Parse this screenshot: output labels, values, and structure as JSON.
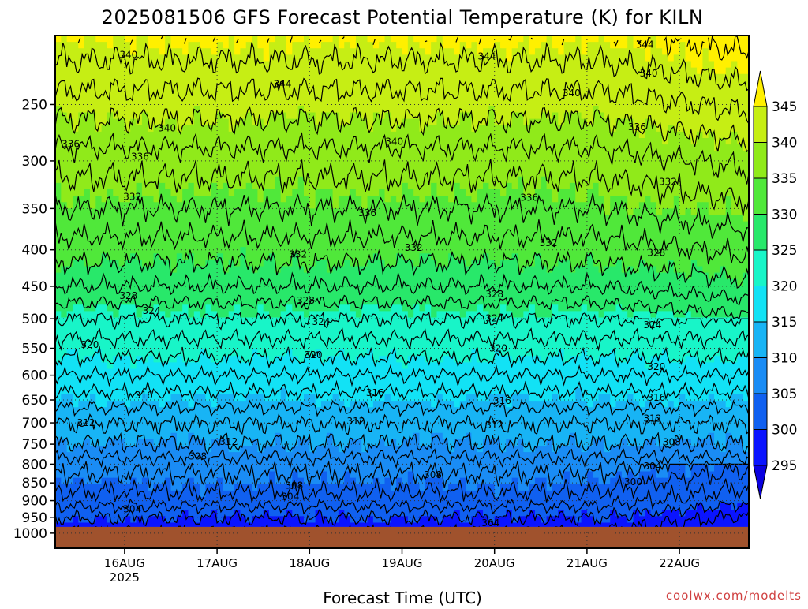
{
  "chart_data": {
    "type": "contour",
    "title": "2025081506 GFS Forecast Potential Temperature (K) for KILN",
    "xlabel": "Forecast Time (UTC)",
    "ylabel": "",
    "credit": "coolwx.com/modelts",
    "x_ticks": [
      {
        "label": "16AUG",
        "sublabel": "2025",
        "hour": 18
      },
      {
        "label": "17AUG",
        "sublabel": "",
        "hour": 42
      },
      {
        "label": "18AUG",
        "sublabel": "",
        "hour": 66
      },
      {
        "label": "19AUG",
        "sublabel": "",
        "hour": 90
      },
      {
        "label": "20AUG",
        "sublabel": "",
        "hour": 114
      },
      {
        "label": "21AUG",
        "sublabel": "",
        "hour": 138
      },
      {
        "label": "22AUG",
        "sublabel": "",
        "hour": 162
      }
    ],
    "x_range_hours": [
      0,
      180
    ],
    "y_axis": "pressure (hPa), inverted",
    "y_range": [
      200,
      1050
    ],
    "y_ticks": [
      250,
      300,
      350,
      400,
      450,
      500,
      550,
      600,
      650,
      700,
      750,
      800,
      850,
      900,
      950,
      1000
    ],
    "colorbar": {
      "levels": [
        295,
        300,
        305,
        310,
        315,
        320,
        325,
        330,
        335,
        340,
        345
      ],
      "labels": [
        "295",
        "300",
        "305",
        "310",
        "315",
        "320",
        "325",
        "330",
        "335",
        "340",
        "345"
      ],
      "colors": [
        "#0a00e0",
        "#0a14ff",
        "#1060f0",
        "#1a8cf5",
        "#18b4f5",
        "#12e2f5",
        "#18f5c8",
        "#28e86a",
        "#50e83a",
        "#90ea1a",
        "#c6ee14",
        "#fff000"
      ]
    },
    "ground_color": "#a0522d",
    "grid": true,
    "profile": [
      {
        "p": 250,
        "theta": 341
      },
      {
        "p": 300,
        "theta": 337
      },
      {
        "p": 350,
        "theta": 334
      },
      {
        "p": 400,
        "theta": 331
      },
      {
        "p": 450,
        "theta": 328
      },
      {
        "p": 500,
        "theta": 324
      },
      {
        "p": 550,
        "theta": 321
      },
      {
        "p": 600,
        "theta": 318
      },
      {
        "p": 650,
        "theta": 315
      },
      {
        "p": 700,
        "theta": 312
      },
      {
        "p": 750,
        "theta": 310
      },
      {
        "p": 800,
        "theta": 307
      },
      {
        "p": 850,
        "theta": 305
      },
      {
        "p": 900,
        "theta": 303
      },
      {
        "p": 950,
        "theta": 300
      }
    ],
    "contour_labels": [
      {
        "text": "340",
        "hour": 19,
        "p": 213
      },
      {
        "text": "344",
        "hour": 59,
        "p": 234
      },
      {
        "text": "340",
        "hour": 29,
        "p": 270
      },
      {
        "text": "344",
        "hour": 112,
        "p": 214
      },
      {
        "text": "344",
        "hour": 153,
        "p": 206
      },
      {
        "text": "340",
        "hour": 154,
        "p": 226
      },
      {
        "text": "340",
        "hour": 134,
        "p": 241
      },
      {
        "text": "340",
        "hour": 88,
        "p": 282
      },
      {
        "text": "336",
        "hour": 4,
        "p": 284
      },
      {
        "text": "336",
        "hour": 22,
        "p": 296
      },
      {
        "text": "336",
        "hour": 151,
        "p": 269
      },
      {
        "text": "332",
        "hour": 20,
        "p": 337
      },
      {
        "text": "332",
        "hour": 159,
        "p": 321
      },
      {
        "text": "336",
        "hour": 81,
        "p": 355
      },
      {
        "text": "336",
        "hour": 123,
        "p": 338
      },
      {
        "text": "332",
        "hour": 128,
        "p": 391
      },
      {
        "text": "332",
        "hour": 63,
        "p": 406
      },
      {
        "text": "332",
        "hour": 93,
        "p": 397
      },
      {
        "text": "328",
        "hour": 156,
        "p": 404
      },
      {
        "text": "328",
        "hour": 19,
        "p": 464
      },
      {
        "text": "328",
        "hour": 65,
        "p": 471
      },
      {
        "text": "328",
        "hour": 114,
        "p": 462
      },
      {
        "text": "324",
        "hour": 25,
        "p": 487
      },
      {
        "text": "324",
        "hour": 69,
        "p": 505
      },
      {
        "text": "324",
        "hour": 114,
        "p": 499
      },
      {
        "text": "324",
        "hour": 155,
        "p": 510
      },
      {
        "text": "320",
        "hour": 9,
        "p": 544
      },
      {
        "text": "320",
        "hour": 67,
        "p": 562
      },
      {
        "text": "320",
        "hour": 115,
        "p": 550
      },
      {
        "text": "320",
        "hour": 156,
        "p": 584
      },
      {
        "text": "316",
        "hour": 23,
        "p": 640
      },
      {
        "text": "316",
        "hour": 83,
        "p": 635
      },
      {
        "text": "316",
        "hour": 116,
        "p": 652
      },
      {
        "text": "316",
        "hour": 156,
        "p": 645
      },
      {
        "text": "312",
        "hour": 8,
        "p": 700
      },
      {
        "text": "312",
        "hour": 45,
        "p": 744
      },
      {
        "text": "312",
        "hour": 78,
        "p": 696
      },
      {
        "text": "312",
        "hour": 114,
        "p": 705
      },
      {
        "text": "312",
        "hour": 155,
        "p": 690
      },
      {
        "text": "308",
        "hour": 37,
        "p": 780
      },
      {
        "text": "308",
        "hour": 160,
        "p": 745
      },
      {
        "text": "308",
        "hour": 98,
        "p": 828
      },
      {
        "text": "308",
        "hour": 62,
        "p": 857
      },
      {
        "text": "304",
        "hour": 155,
        "p": 805
      },
      {
        "text": "304",
        "hour": 61,
        "p": 888
      },
      {
        "text": "300",
        "hour": 150,
        "p": 848
      },
      {
        "text": "304",
        "hour": 20,
        "p": 925
      },
      {
        "text": "304",
        "hour": 113,
        "p": 968
      }
    ]
  }
}
